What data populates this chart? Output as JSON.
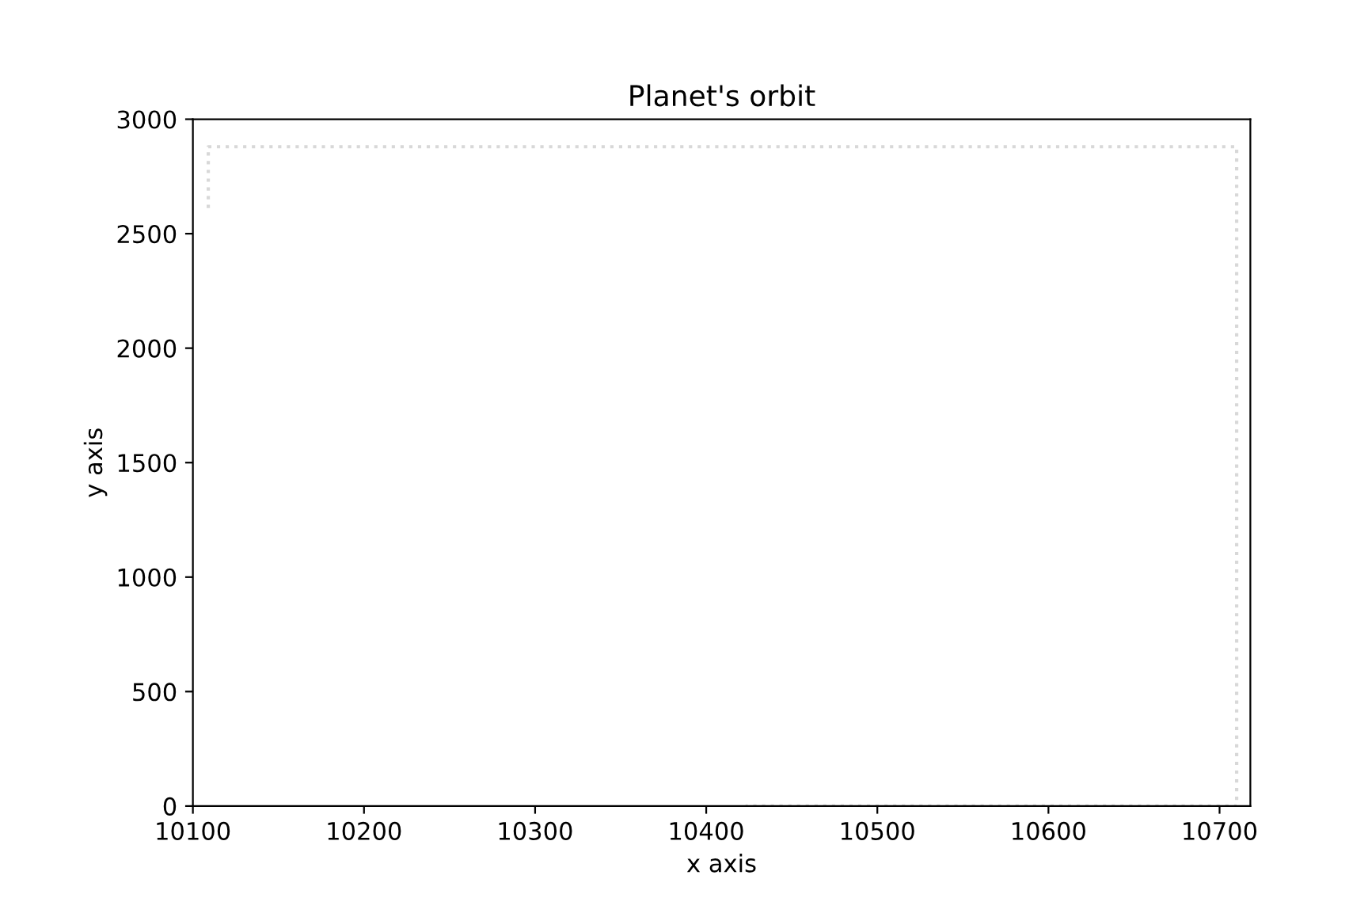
{
  "chart_data": {
    "type": "line",
    "title": "Planet's orbit",
    "xlabel": "x axis",
    "ylabel": "y axis",
    "x": [
      10109,
      10109,
      10450,
      10710,
      10710,
      10690,
      10423
    ],
    "series": [
      {
        "color": "#d8d8d8",
        "values": [
          2612,
          2880,
          2880,
          2880,
          0,
          0,
          0
        ]
      }
    ],
    "xlim": [
      10100,
      10718
    ],
    "xticks": [
      10100,
      10200,
      10300,
      10400,
      10500,
      10600,
      10700
    ],
    "ylim": [
      0,
      3000
    ],
    "yticks": [
      0,
      500,
      1000,
      1500,
      2000,
      2500,
      3000
    ],
    "line_style": "dotted",
    "marker": "none",
    "grid": false,
    "legend": false
  }
}
